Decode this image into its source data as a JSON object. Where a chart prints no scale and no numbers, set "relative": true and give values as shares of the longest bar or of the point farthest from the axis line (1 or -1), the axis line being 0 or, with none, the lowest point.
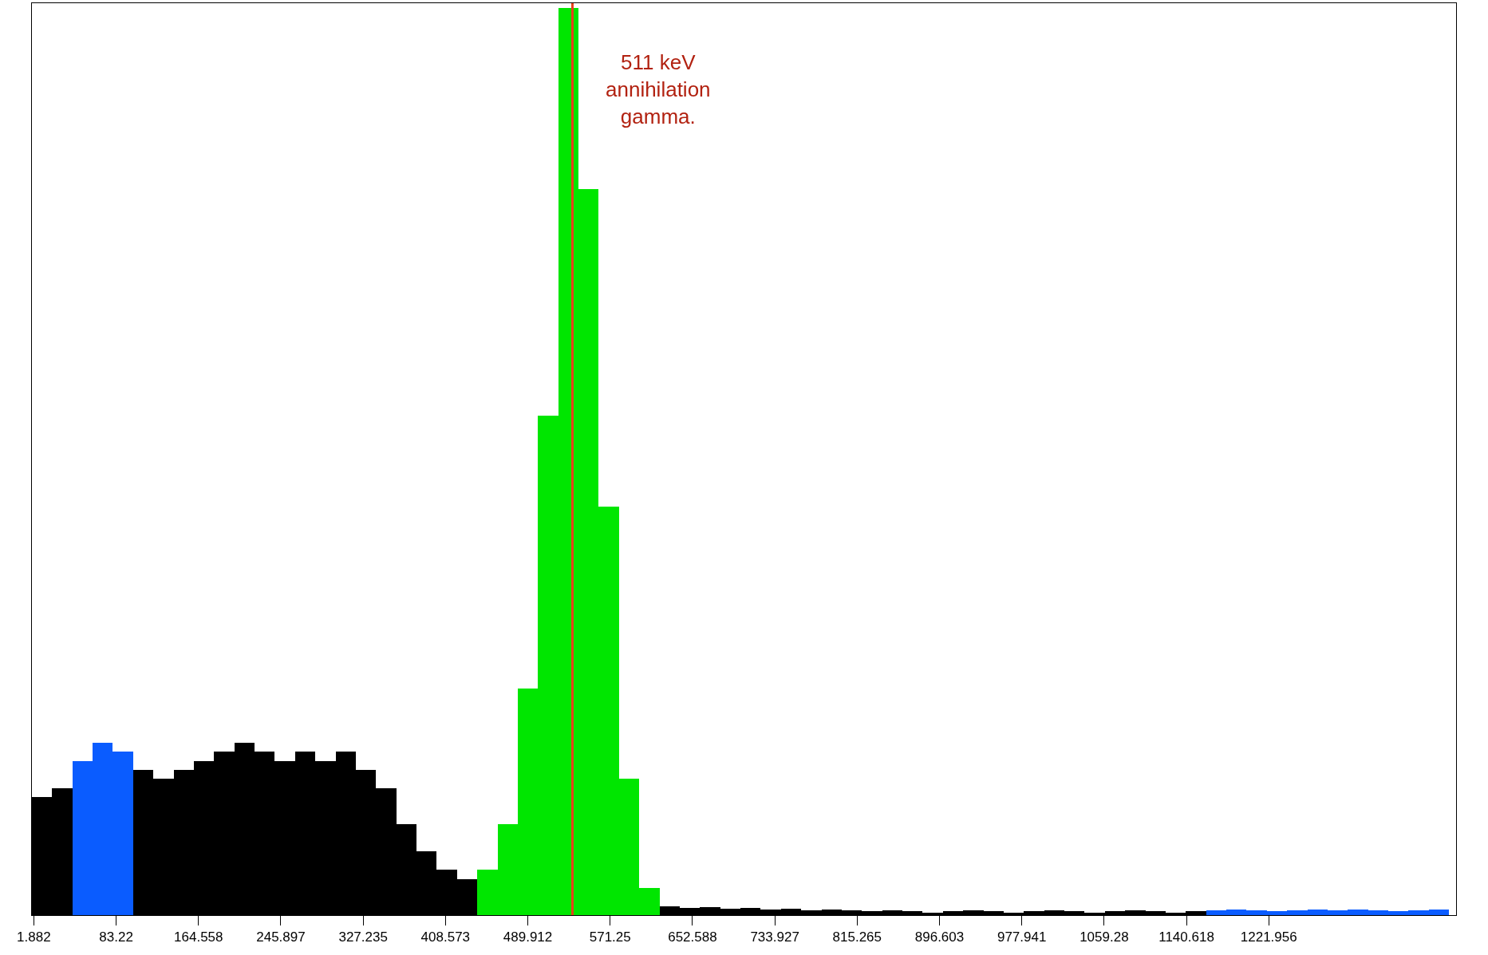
{
  "chart_data": {
    "type": "bar",
    "relative": true,
    "x": [
      10,
      30,
      50,
      70,
      90,
      110,
      130,
      150,
      170,
      190,
      210,
      230,
      250,
      270,
      290,
      310,
      330,
      350,
      370,
      390,
      410,
      430,
      450,
      470,
      490,
      510,
      530,
      550,
      570,
      590,
      610,
      630,
      650,
      670,
      690,
      710,
      730,
      750,
      770,
      790,
      810,
      830,
      850,
      870,
      890,
      910,
      930,
      950,
      970,
      990,
      1010,
      1030,
      1050,
      1070,
      1090,
      1110,
      1130,
      1150,
      1170,
      1190,
      1210,
      1230,
      1250,
      1270,
      1290,
      1310,
      1330,
      1350,
      1370,
      1390
    ],
    "values": [
      0.13,
      0.14,
      0.17,
      0.19,
      0.18,
      0.16,
      0.15,
      0.16,
      0.17,
      0.18,
      0.19,
      0.18,
      0.17,
      0.18,
      0.17,
      0.18,
      0.16,
      0.14,
      0.1,
      0.07,
      0.05,
      0.04,
      0.05,
      0.1,
      0.25,
      0.55,
      1.0,
      0.8,
      0.45,
      0.15,
      0.03,
      0.01,
      0.008,
      0.009,
      0.007,
      0.008,
      0.006,
      0.007,
      0.005,
      0.006,
      0.005,
      0.004,
      0.005,
      0.004,
      0.003,
      0.004,
      0.005,
      0.004,
      0.003,
      0.004,
      0.005,
      0.004,
      0.003,
      0.004,
      0.005,
      0.004,
      0.003,
      0.004,
      0.005,
      0.006,
      0.005,
      0.004,
      0.005,
      0.006,
      0.005,
      0.006,
      0.005,
      0.004,
      0.005,
      0.006
    ],
    "colors": [
      "#000000",
      "#000000",
      "#0a5cff",
      "#0a5cff",
      "#0a5cff",
      "#000000",
      "#000000",
      "#000000",
      "#000000",
      "#000000",
      "#000000",
      "#000000",
      "#000000",
      "#000000",
      "#000000",
      "#000000",
      "#000000",
      "#000000",
      "#000000",
      "#000000",
      "#000000",
      "#000000",
      "#00e600",
      "#00e600",
      "#00e600",
      "#00e600",
      "#00e600",
      "#00e600",
      "#00e600",
      "#00e600",
      "#00e600",
      "#000000",
      "#000000",
      "#000000",
      "#000000",
      "#000000",
      "#000000",
      "#000000",
      "#000000",
      "#000000",
      "#000000",
      "#000000",
      "#000000",
      "#000000",
      "#000000",
      "#000000",
      "#000000",
      "#000000",
      "#000000",
      "#000000",
      "#000000",
      "#000000",
      "#000000",
      "#000000",
      "#000000",
      "#000000",
      "#000000",
      "#000000",
      "#0a5cff",
      "#0a5cff",
      "#0a5cff",
      "#0a5cff",
      "#0a5cff",
      "#0a5cff",
      "#0a5cff",
      "#0a5cff",
      "#0a5cff",
      "#0a5cff",
      "#0a5cff",
      "#0a5cff"
    ],
    "xlim": [
      0,
      1407
    ],
    "xticks": [
      {
        "value": 1.882,
        "label": "1.882"
      },
      {
        "value": 83.22,
        "label": "83.22"
      },
      {
        "value": 164.558,
        "label": "164.558"
      },
      {
        "value": 245.897,
        "label": "245.897"
      },
      {
        "value": 327.235,
        "label": "327.235"
      },
      {
        "value": 408.573,
        "label": "408.573"
      },
      {
        "value": 489.912,
        "label": "489.912"
      },
      {
        "value": 571.25,
        "label": "571.25"
      },
      {
        "value": 652.588,
        "label": "652.588"
      },
      {
        "value": 733.927,
        "label": "733.927"
      },
      {
        "value": 815.265,
        "label": "815.265"
      },
      {
        "value": 896.603,
        "label": "896.603"
      },
      {
        "value": 977.941,
        "label": "977.941"
      },
      {
        "value": 1059.28,
        "label": "1059.28"
      },
      {
        "value": 1140.618,
        "label": "1140.618"
      },
      {
        "value": 1221.956,
        "label": "1221.956"
      }
    ],
    "ref_lines": [
      {
        "axis": "x",
        "value": 534,
        "label": "511 keV\nannihilation\ngamma.",
        "color": "#e8401c"
      }
    ],
    "tick_labels": "x"
  }
}
